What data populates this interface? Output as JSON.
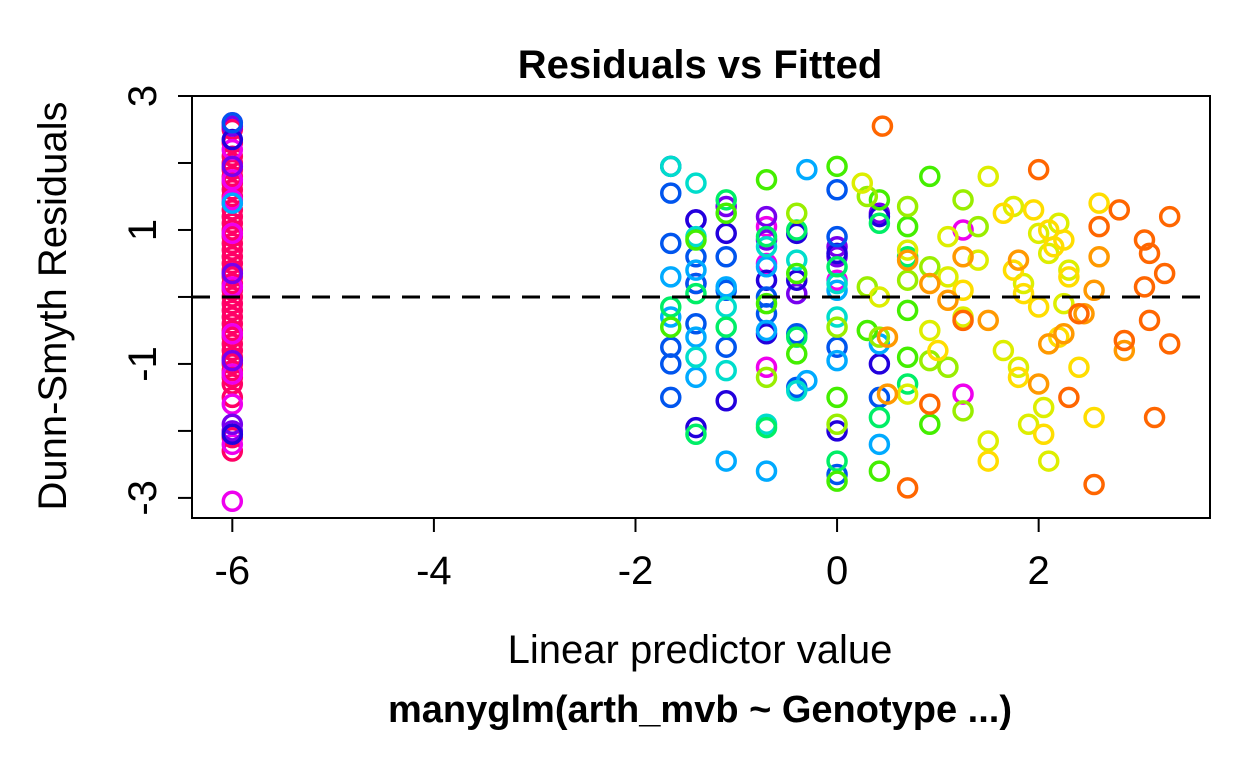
{
  "chart_data": {
    "type": "scatter",
    "title": "Residuals vs Fitted",
    "xlabel": "Linear predictor value",
    "ylabel": "Dunn-Smyth Residuals",
    "subtitle": "manyglm(arth_mvb ~ Genotype ...)",
    "xlim": [
      -6.4,
      3.7
    ],
    "ylim": [
      -3.3,
      3.0
    ],
    "xticks": [
      -6,
      -4,
      -2,
      0,
      2
    ],
    "yticks": [
      -3,
      -2,
      -1,
      0,
      1,
      2,
      3
    ],
    "ytick_labels": [
      "-3",
      "",
      "-1",
      "",
      "1",
      "",
      "3"
    ],
    "xtick_labels": [
      "-6",
      "-4",
      "-2",
      "0",
      "2"
    ],
    "reference_line": {
      "y": 0,
      "style": "dashed"
    },
    "grid": false,
    "legend": "none",
    "series": [
      {
        "color": "#ff0066",
        "x": [
          -6,
          -6,
          -6,
          -6,
          -6,
          -6,
          -6,
          -6,
          -6,
          -6,
          -6,
          -6,
          -6,
          -6,
          -6,
          -6,
          -6,
          -6,
          -6,
          -6,
          -6,
          -6,
          -6,
          -6,
          -6,
          -6,
          -6,
          -6,
          -6,
          -6,
          -6,
          -6,
          -6,
          -6,
          -6,
          -6,
          -6,
          -6,
          -6,
          -6
        ],
        "y": [
          2.5,
          2.3,
          2.1,
          1.9,
          1.7,
          1.5,
          1.3,
          1.1,
          0.9,
          0.7,
          0.5,
          0.3,
          0.1,
          -0.1,
          -0.3,
          -0.5,
          -0.7,
          -0.9,
          -1.1,
          -1.3,
          -1.5,
          -2.3,
          2.0,
          1.6,
          1.2,
          0.8,
          0.4,
          0.0,
          -0.4,
          -0.8,
          -1.2,
          1.8,
          1.4,
          1.0,
          0.6,
          0.2,
          -0.2,
          -0.6,
          -1.0,
          -2.1
        ]
      },
      {
        "color": "#ee00ee",
        "x": [
          -6,
          -6,
          -6,
          -6,
          -6,
          -6,
          -6,
          -6,
          -6,
          -6,
          -6,
          -1.4,
          -0.7,
          -0.7,
          -0.7,
          0.0,
          1.25,
          1.25
        ],
        "y": [
          -3.05,
          2.6,
          2.2,
          1.75,
          -1.6,
          -2.2,
          0.95,
          0.15,
          -0.55,
          -1.15,
          1.45,
          0.2,
          1.05,
          -1.05,
          0.5,
          0.25,
          1.0,
          -1.45
        ]
      },
      {
        "color": "#7700ee",
        "x": [
          -6,
          -6,
          -6,
          -6,
          -6,
          -6,
          -1.4,
          -1.1,
          -0.7,
          -0.7,
          -0.4,
          0.0,
          0.0,
          0.42
        ],
        "y": [
          2.55,
          -2.0,
          1.95,
          -1.9,
          0.35,
          -0.95,
          1.15,
          1.35,
          1.2,
          0.85,
          0.05,
          0.75,
          0.6,
          1.25
        ]
      },
      {
        "color": "#2200dd",
        "x": [
          -6,
          -6,
          -1.65,
          -1.4,
          -1.4,
          -1.1,
          -1.1,
          -0.7,
          -0.7,
          -0.4,
          -0.4,
          0.0,
          0.0,
          0.42,
          0.42
        ],
        "y": [
          2.35,
          -2.05,
          1.95,
          -1.95,
          1.15,
          -1.55,
          0.95,
          0.25,
          -0.55,
          0.25,
          0.95,
          -2.0,
          0.65,
          -1.0,
          1.2
        ]
      },
      {
        "color": "#0055ee",
        "x": [
          -6,
          -1.65,
          -1.65,
          -1.65,
          -1.65,
          -1.65,
          -1.4,
          -1.4,
          -1.4,
          -1.1,
          -1.1,
          -1.1,
          -0.7,
          -0.7,
          -0.4,
          -0.4,
          0.0,
          0.0,
          0.0,
          0.0,
          0.42
        ],
        "y": [
          2.6,
          1.55,
          0.8,
          -0.75,
          -1.0,
          -1.5,
          0.6,
          0.2,
          -0.4,
          0.1,
          -0.75,
          0.6,
          -0.25,
          0.0,
          -0.55,
          -1.35,
          1.6,
          -0.75,
          -2.65,
          0.9,
          -1.5
        ]
      },
      {
        "color": "#00aaff",
        "x": [
          -6,
          -1.65,
          -1.65,
          -1.4,
          -1.4,
          -1.4,
          -1.1,
          -1.1,
          -0.7,
          -0.7,
          -0.7,
          -0.3,
          -0.3,
          0.0,
          0.0,
          0.42,
          0.42
        ],
        "y": [
          1.4,
          0.3,
          -0.3,
          -0.6,
          0.4,
          -1.2,
          -2.45,
          0.15,
          0.45,
          -0.5,
          -2.6,
          1.9,
          -1.25,
          -0.95,
          0.1,
          -2.2,
          -0.7
        ]
      },
      {
        "color": "#00ddcc",
        "x": [
          -1.65,
          -1.4,
          -1.4,
          -1.4,
          -1.1,
          -1.1,
          -0.7,
          -0.7,
          -0.4,
          -0.4,
          0.0,
          0.0
        ],
        "y": [
          1.95,
          1.7,
          -0.9,
          0.9,
          -1.1,
          -0.15,
          -1.9,
          0.75,
          -1.4,
          0.55,
          -0.3,
          0.2
        ]
      },
      {
        "color": "#00ee66",
        "x": [
          -1.65,
          -1.4,
          -1.4,
          -1.1,
          -1.1,
          -0.7,
          -0.7,
          -0.4,
          -0.4,
          0.0,
          0.0,
          0.42,
          0.42,
          0.7,
          0.7
        ],
        "y": [
          -0.15,
          -2.05,
          0.05,
          1.45,
          -0.45,
          -1.95,
          0.9,
          1.0,
          -0.6,
          -2.45,
          0.45,
          1.1,
          -1.8,
          0.6,
          -1.3
        ]
      },
      {
        "color": "#44ee00",
        "x": [
          -1.65,
          -1.4,
          -1.1,
          -0.7,
          -0.7,
          -0.4,
          -0.4,
          0.0,
          0.0,
          0.0,
          0.3,
          0.42,
          0.42,
          0.7,
          0.7,
          0.7,
          0.92,
          0.92
        ],
        "y": [
          -0.45,
          0.85,
          1.25,
          1.75,
          -0.1,
          0.35,
          -0.85,
          -2.75,
          1.95,
          -1.5,
          -0.5,
          1.45,
          -2.6,
          -0.2,
          -0.9,
          1.05,
          1.8,
          -1.9
        ]
      },
      {
        "color": "#99ee00",
        "x": [
          -0.7,
          -0.4,
          0.0,
          0.0,
          0.3,
          0.3,
          0.42,
          0.7,
          0.7,
          0.92,
          0.92,
          1.1,
          1.25,
          1.25,
          1.4
        ],
        "y": [
          -1.2,
          1.25,
          -1.9,
          -0.45,
          0.15,
          1.5,
          -0.6,
          1.35,
          0.25,
          0.45,
          -0.95,
          -1.05,
          1.45,
          -1.7,
          1.05
        ]
      },
      {
        "color": "#ddee00",
        "x": [
          0.25,
          0.42,
          0.7,
          0.7,
          0.92,
          1.1,
          1.1,
          1.25,
          1.4,
          1.5,
          1.5,
          1.65,
          1.75,
          1.8,
          1.85,
          1.9,
          2.0,
          2.05,
          2.1,
          2.1,
          2.2,
          2.25,
          2.3
        ],
        "y": [
          1.7,
          0.0,
          -1.45,
          0.7,
          -0.5,
          0.3,
          0.9,
          -0.3,
          0.55,
          -2.15,
          1.8,
          -0.8,
          1.35,
          -1.05,
          0.2,
          -1.9,
          0.95,
          -1.65,
          0.65,
          -2.45,
          1.1,
          -0.1,
          0.4
        ]
      },
      {
        "color": "#ffdd00",
        "x": [
          1.0,
          1.25,
          1.5,
          1.65,
          1.75,
          1.8,
          1.85,
          1.95,
          2.0,
          2.05,
          2.1,
          2.15,
          2.2,
          2.25,
          2.3,
          2.4,
          2.55,
          2.6
        ],
        "y": [
          -0.8,
          0.1,
          -2.45,
          1.25,
          0.4,
          -1.2,
          0.05,
          1.3,
          -0.15,
          -2.05,
          1.0,
          0.75,
          -0.6,
          0.85,
          0.3,
          -1.05,
          -1.8,
          1.4
        ]
      },
      {
        "color": "#ff9900",
        "x": [
          0.5,
          0.5,
          0.7,
          0.92,
          1.1,
          1.25,
          1.5,
          1.8,
          2.0,
          2.1,
          2.25,
          2.45,
          2.55,
          2.6,
          2.85
        ],
        "y": [
          -0.6,
          -1.45,
          0.55,
          0.2,
          -0.05,
          0.6,
          -0.35,
          0.55,
          -1.3,
          -0.7,
          -0.55,
          -0.25,
          0.1,
          0.6,
          -0.8
        ]
      },
      {
        "color": "#ff6600",
        "x": [
          0.45,
          0.7,
          0.92,
          1.25,
          2.0,
          2.3,
          2.4,
          2.55,
          2.6,
          2.8,
          2.85,
          3.05,
          3.1,
          3.1,
          3.15,
          3.25,
          3.3,
          3.3,
          3.05
        ],
        "y": [
          2.55,
          -2.85,
          -1.6,
          -0.35,
          1.9,
          -1.5,
          -0.25,
          -2.8,
          1.05,
          1.3,
          -0.65,
          0.85,
          0.65,
          -0.35,
          -1.8,
          0.35,
          -0.7,
          1.2,
          0.15
        ]
      }
    ]
  }
}
